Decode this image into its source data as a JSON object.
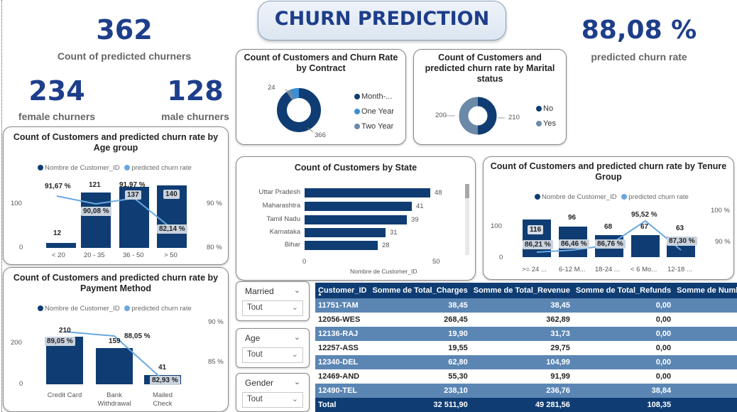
{
  "title": "CHURN PREDICTION",
  "kpis": {
    "predicted_churners": {
      "value": "362",
      "label": "Count of predicted churners"
    },
    "female": {
      "value": "234",
      "label": "female churners"
    },
    "male": {
      "value": "128",
      "label": "male churners"
    },
    "churn_rate": {
      "value": "88,08 %",
      "label": "predicted churn rate"
    }
  },
  "contract_chart": {
    "title": "Count of Customers and Churn Rate by Contract",
    "labels": {
      "small": "24",
      "large": "366"
    },
    "legend": [
      "Month-...",
      "One Year",
      "Two Year"
    ],
    "colors": [
      "#0f3d73",
      "#3a8fd6",
      "#6b8aa8"
    ]
  },
  "marital_chart": {
    "title": "Count of Customers and predicted churn rate by Marital status",
    "labels": {
      "left": "200",
      "right": "210"
    },
    "legend": [
      "No",
      "Yes"
    ],
    "colors": [
      "#0f3d73",
      "#6b8aa8"
    ]
  },
  "age_chart": {
    "title": "Count of Customers and predicted churn rate by Age group",
    "legend": [
      "Nombre de Customer_ID",
      "predicted churn rate"
    ],
    "y_left": [
      "100",
      "0"
    ],
    "y_right": [
      "90 %",
      "80 %"
    ],
    "categories": [
      "< 20",
      "20 - 35",
      "36 - 50",
      "> 50"
    ],
    "counts": [
      "12",
      "121",
      "137",
      "140"
    ],
    "rates": [
      "91,67 %",
      "90,08 %",
      "91,97 %",
      "82,14 %"
    ]
  },
  "state_chart": {
    "title": "Count of Customers by State",
    "categories": [
      "Uttar Pradesh",
      "Maharashtra",
      "Tamil Nadu",
      "Karnataka",
      "Bihar"
    ],
    "values": [
      "48",
      "41",
      "39",
      "31",
      "28"
    ],
    "x_ticks": [
      "0",
      "50"
    ],
    "x_label": "Nombre de Customer_ID"
  },
  "tenure_chart": {
    "title": "Count of Customers and predicted churn rate by Tenure Group",
    "legend": [
      "Nombre de Customer_ID",
      "predicted churn rate"
    ],
    "y_left": [
      "100",
      "0"
    ],
    "y_right": [
      "100 %",
      "90 %"
    ],
    "categories": [
      ">= 24 ...",
      "6-12 M...",
      "18-24 ...",
      "< 6 Mo...",
      "12-18 ..."
    ],
    "counts": [
      "116",
      "96",
      "68",
      "67",
      "63"
    ],
    "rates": [
      "86,21 %",
      "86,46 %",
      "86,76 %",
      "95,52 %",
      "87,30 %"
    ]
  },
  "payment_chart": {
    "title": "Count of Customers and predicted churn rate by Payment Method",
    "legend": [
      "Nombre de Customer_ID",
      "predicted churn rate"
    ],
    "y_left": [
      "200",
      "0"
    ],
    "y_right": [
      "90 %",
      "85 %"
    ],
    "categories": [
      "Credit Card",
      "Bank Withdrawal",
      "Mailed Check"
    ],
    "counts": [
      "210",
      "159",
      "41"
    ],
    "rates": [
      "89,05 %",
      "88,05 %",
      "82,93 %"
    ]
  },
  "slicers": [
    {
      "title": "Married",
      "value": "Tout"
    },
    {
      "title": "Age",
      "value": "Tout"
    },
    {
      "title": "Gender",
      "value": "Tout"
    }
  ],
  "table": {
    "columns": [
      "Customer_ID",
      "Somme de Total_Charges",
      "Somme de Total_Revenue",
      "Somme de Total_Refunds",
      "Somme de Number"
    ],
    "rows": [
      [
        "11751-TAM",
        "38,45",
        "38,45",
        "0,00",
        ""
      ],
      [
        "12056-WES",
        "268,45",
        "362,89",
        "0,00",
        ""
      ],
      [
        "12136-RAJ",
        "19,90",
        "31,73",
        "0,00",
        ""
      ],
      [
        "12257-ASS",
        "19,55",
        "29,75",
        "0,00",
        ""
      ],
      [
        "12340-DEL",
        "62,80",
        "104,99",
        "0,00",
        ""
      ],
      [
        "12469-AND",
        "55,30",
        "91,99",
        "0,00",
        ""
      ],
      [
        "12490-TEL",
        "238,10",
        "236,76",
        "38,84",
        ""
      ]
    ],
    "total": [
      "Total",
      "32 511,90",
      "49 281,56",
      "108,35",
      ""
    ]
  }
}
